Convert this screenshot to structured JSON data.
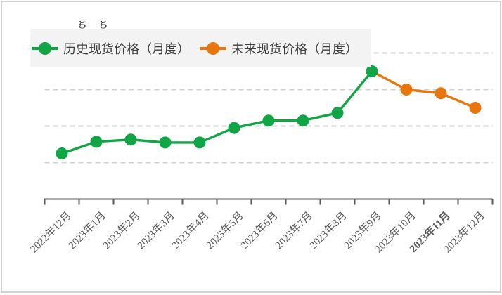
{
  "page": {
    "background": "#ffffff",
    "frame_border_color": "#d2d2d2"
  },
  "clipped_title_fragment": "gg",
  "legend": {
    "background": "#f2f2f2",
    "position": "top-left",
    "items": [
      {
        "label": "历史现货价格（月度）",
        "color": "#12a546",
        "marker": "line-circle"
      },
      {
        "label": "未来现货价格（月度）",
        "color": "#e8760e",
        "marker": "line-circle"
      }
    ]
  },
  "chart_data": {
    "type": "line",
    "title": "",
    "xlabel": "",
    "ylabel": "",
    "grid": true,
    "legend_position": "top-left",
    "categories": [
      "2022年12月",
      "2023年1月",
      "2023年2月",
      "2023年3月",
      "2023年4月",
      "2023年5月",
      "2023年6月",
      "2023年7月",
      "2023年8月",
      "2023年9月",
      "2023年10月",
      "2023年11月",
      "2023年12月"
    ],
    "emphasized_category_index": 11,
    "emphasized_category": "2023年11月",
    "y_axis": {
      "labels_visible": false,
      "unit": "gridline-units (no y tick labels visible in image; axis = 0, each dashed gridline = +1)",
      "gridline_values": [
        1,
        2,
        3,
        4
      ]
    },
    "series": [
      {
        "name": "历史现货价格（月度）",
        "color": "#12a546",
        "x_indices": [
          0,
          1,
          2,
          3,
          4,
          5,
          6,
          7,
          8,
          9
        ],
        "values": [
          1.25,
          1.57,
          1.63,
          1.55,
          1.55,
          1.95,
          2.15,
          2.15,
          2.36,
          3.5
        ],
        "markers_from_index": 0
      },
      {
        "name": "未来现货价格（月度）",
        "color": "#e8760e",
        "x_indices": [
          9,
          10,
          11,
          12
        ],
        "values": [
          3.5,
          3.0,
          2.9,
          2.5
        ],
        "markers_from_index": 1
      }
    ]
  },
  "style": {
    "gridline_color": "#d0d0d0",
    "axis_color": "#595959",
    "x_label_color": "#595959"
  }
}
